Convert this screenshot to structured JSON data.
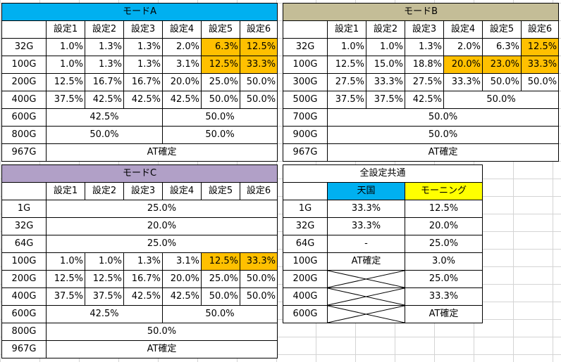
{
  "mode_a": {
    "title": "モードA",
    "headers": [
      "設定1",
      "設定2",
      "設定3",
      "設定4",
      "設定5",
      "設定6"
    ],
    "r32": {
      "g": "32G",
      "v": [
        "1.0%",
        "1.3%",
        "1.3%",
        "2.0%",
        "6.3%",
        "12.5%"
      ]
    },
    "r100": {
      "g": "100G",
      "v": [
        "1.0%",
        "1.3%",
        "1.3%",
        "3.1%",
        "12.5%",
        "33.3%"
      ]
    },
    "r200": {
      "g": "200G",
      "v": [
        "12.5%",
        "16.7%",
        "16.7%",
        "20.0%",
        "25.0%",
        "50.0%"
      ]
    },
    "r400": {
      "g": "400G",
      "v": [
        "37.5%",
        "42.5%",
        "42.5%",
        "42.5%",
        "50.0%",
        "50.0%"
      ]
    },
    "r600": {
      "g": "600G",
      "left": "42.5%",
      "right": "50.0%"
    },
    "r800": {
      "g": "800G",
      "left": "50.0%",
      "right": "50.0%"
    },
    "r967": {
      "g": "967G",
      "v": "AT確定"
    }
  },
  "mode_b": {
    "title": "モードB",
    "headers": [
      "設定1",
      "設定2",
      "設定3",
      "設定4",
      "設定5",
      "設定6"
    ],
    "r32": {
      "g": "32G",
      "v": [
        "1.0%",
        "1.0%",
        "1.3%",
        "2.0%",
        "6.3%",
        "12.5%"
      ]
    },
    "r100": {
      "g": "100G",
      "v": [
        "12.5%",
        "15.0%",
        "18.8%",
        "20.0%",
        "23.0%",
        "33.3%"
      ]
    },
    "r300": {
      "g": "300G",
      "v": [
        "27.5%",
        "33.3%",
        "27.5%",
        "33.3%",
        "50.0%",
        "50.0%"
      ]
    },
    "r500": {
      "g": "500G",
      "v": [
        "37.5%",
        "37.5%",
        "42.5%"
      ],
      "right": "50.0%"
    },
    "r700": {
      "g": "700G",
      "v": "50.0%"
    },
    "r900": {
      "g": "900G",
      "v": "50.0%"
    },
    "r967": {
      "g": "967G",
      "v": "AT確定"
    }
  },
  "mode_c": {
    "title": "モードC",
    "headers": [
      "設定1",
      "設定2",
      "設定3",
      "設定4",
      "設定5",
      "設定6"
    ],
    "r1": {
      "g": "1G",
      "v": "25.0%"
    },
    "r32": {
      "g": "32G",
      "v": "20.0%"
    },
    "r64": {
      "g": "64G",
      "v": "25.0%"
    },
    "r100": {
      "g": "100G",
      "v": [
        "1.0%",
        "1.0%",
        "1.3%",
        "3.1%",
        "12.5%",
        "33.3%"
      ]
    },
    "r200": {
      "g": "200G",
      "v": [
        "12.5%",
        "12.5%",
        "16.7%",
        "20.0%",
        "25.0%",
        "50.0%"
      ]
    },
    "r400": {
      "g": "400G",
      "v": [
        "37.5%",
        "37.5%",
        "42.5%",
        "42.5%",
        "50.0%",
        "50.0%"
      ]
    },
    "r600": {
      "g": "600G",
      "left": "42.5%",
      "right": "50.0%"
    },
    "r800": {
      "g": "800G",
      "v": "50.0%"
    },
    "r967": {
      "g": "967G",
      "v": "AT確定"
    }
  },
  "common": {
    "title": "全設定共通",
    "col1": "天国",
    "col2": "モーニング",
    "rows": [
      {
        "g": "1G",
        "heaven": "33.3%",
        "morning": "12.5%"
      },
      {
        "g": "32G",
        "heaven": "33.3%",
        "morning": "20.0%"
      },
      {
        "g": "64G",
        "heaven": "-",
        "morning": "25.0%"
      },
      {
        "g": "100G",
        "heaven": "AT確定",
        "morning": "3.0%"
      },
      {
        "g": "200G",
        "heaven": "",
        "morning": "25.0%"
      },
      {
        "g": "400G",
        "heaven": "",
        "morning": "33.3%"
      },
      {
        "g": "600G",
        "heaven": "",
        "morning": "AT確定"
      }
    ]
  },
  "colors": {
    "mode_a_header": "#00b0f0",
    "mode_b_header": "#c4bd97",
    "mode_c_header": "#b1a0c7",
    "highlight": "#ffc000",
    "heaven": "#00b0f0",
    "morning": "#ffff00"
  }
}
